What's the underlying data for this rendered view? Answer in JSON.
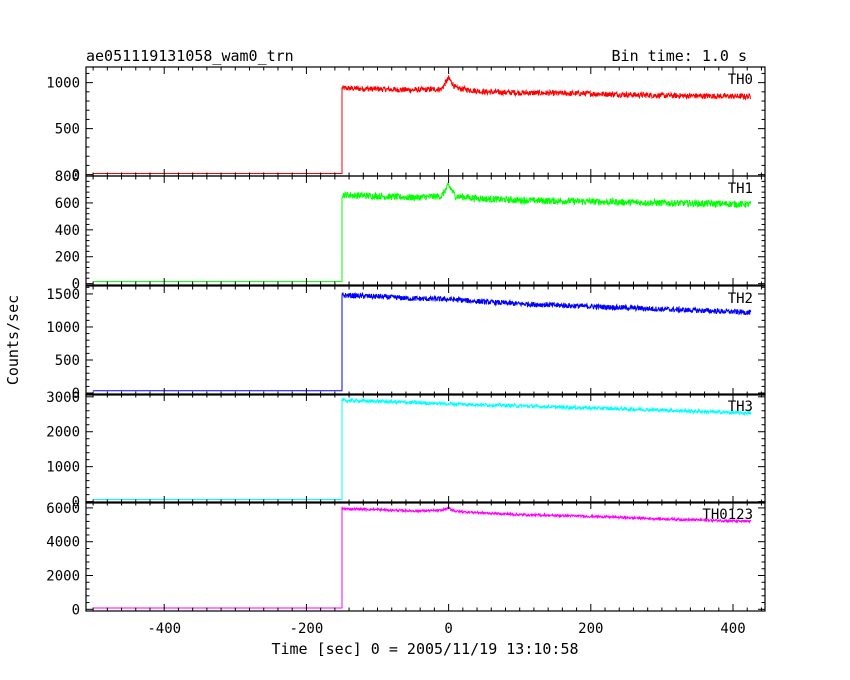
{
  "header": {
    "left": "ae051119131058_wam0_trn",
    "right": "Bin time: 1.0 s"
  },
  "chart_data": {
    "type": "line",
    "title": "ae051119131058_wam0_trn",
    "subtitle": "Bin time: 1.0 s",
    "xlabel": "Time [sec] 0 = 2005/11/19 13:10:58",
    "ylabel": "Counts/sec",
    "xlim": [
      -510,
      445
    ],
    "x_ticks": [
      -400,
      -200,
      0,
      200,
      400
    ],
    "grid": false,
    "panels": [
      {
        "name": "TH0",
        "color": "#ff0000",
        "ylim": [
          -15,
          1170
        ],
        "y_ticks": [
          0,
          500,
          1000
        ],
        "series": [
          {
            "name": "TH0",
            "pre_level": 12,
            "rise_time": -150,
            "x_end": 425,
            "x": [
              -150,
              -100,
              -50,
              -10,
              0,
              10,
              50,
              100,
              200,
              300,
              425
            ],
            "y": [
              940,
              930,
              920,
              930,
              1050,
              940,
              900,
              890,
              880,
              860,
              850
            ],
            "noise": 30
          }
        ]
      },
      {
        "name": "TH1",
        "color": "#00ff00",
        "ylim": [
          -10,
          800
        ],
        "y_ticks": [
          0,
          200,
          400,
          600,
          800
        ],
        "series": [
          {
            "name": "TH1",
            "pre_level": 15,
            "rise_time": -150,
            "x_end": 425,
            "x": [
              -150,
              -100,
              -50,
              -10,
              0,
              10,
              50,
              100,
              200,
              300,
              425
            ],
            "y": [
              660,
              650,
              640,
              650,
              730,
              650,
              630,
              620,
              610,
              600,
              590
            ],
            "noise": 25
          }
        ]
      },
      {
        "name": "TH2",
        "color": "#0000ff",
        "ylim": [
          -30,
          1620
        ],
        "y_ticks": [
          0,
          500,
          1000,
          1500
        ],
        "series": [
          {
            "name": "TH2",
            "pre_level": 35,
            "rise_time": -150,
            "x_end": 425,
            "x": [
              -150,
              -100,
              -50,
              0,
              50,
              100,
              200,
              300,
              425
            ],
            "y": [
              1480,
              1460,
              1430,
              1420,
              1380,
              1350,
              1310,
              1270,
              1220
            ],
            "noise": 40
          }
        ]
      },
      {
        "name": "TH3",
        "color": "#00ffff",
        "ylim": [
          -40,
          3080
        ],
        "y_ticks": [
          0,
          1000,
          2000,
          3000
        ],
        "series": [
          {
            "name": "TH3",
            "pre_level": 60,
            "rise_time": -150,
            "x_end": 425,
            "x": [
              -150,
              -100,
              0,
              100,
              200,
              300,
              425
            ],
            "y": [
              2900,
              2870,
              2800,
              2740,
              2680,
              2620,
              2530
            ],
            "noise": 50
          }
        ]
      },
      {
        "name": "TH0123",
        "color": "#ff00ff",
        "ylim": [
          -100,
          6350
        ],
        "y_ticks": [
          0,
          2000,
          4000,
          6000
        ],
        "series": [
          {
            "name": "TH0123",
            "pre_level": 80,
            "rise_time": -150,
            "x_end": 425,
            "x": [
              -150,
              -100,
              -50,
              -10,
              0,
              10,
              50,
              100,
              200,
              300,
              425
            ],
            "y": [
              5950,
              5900,
              5820,
              5850,
              6000,
              5800,
              5700,
              5600,
              5500,
              5350,
              5200
            ],
            "noise": 70
          }
        ]
      }
    ]
  }
}
